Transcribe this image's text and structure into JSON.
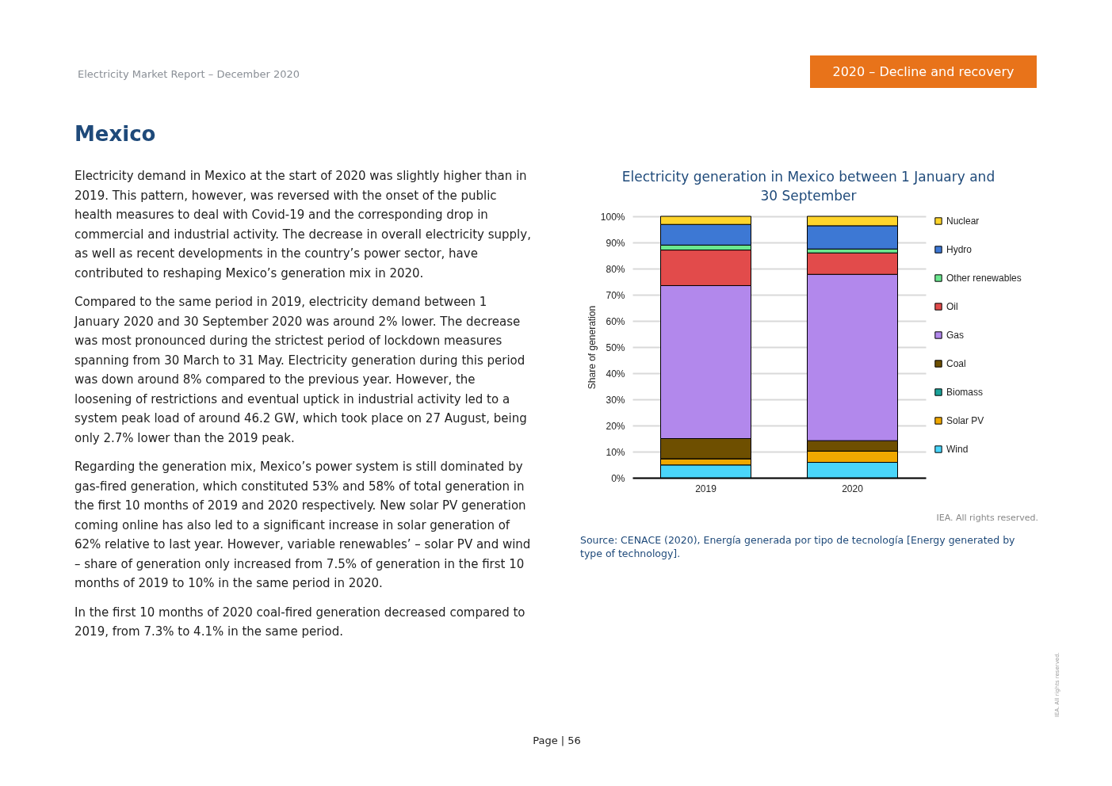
{
  "chart_data": {
    "type": "bar",
    "title": "Electricity generation in Mexico between 1 January and 30 September",
    "ylabel": "Share of generation",
    "categories": [
      "2019",
      "2020"
    ],
    "stacked": true,
    "ylim": [
      0,
      100
    ],
    "yticks": [
      {
        "value": 0,
        "label": "0%"
      },
      {
        "value": 10,
        "label": "10%"
      },
      {
        "value": 20,
        "label": "20%"
      },
      {
        "value": 30,
        "label": "30%"
      },
      {
        "value": 40,
        "label": "40%"
      },
      {
        "value": 50,
        "label": "50%"
      },
      {
        "value": 60,
        "label": "60%"
      },
      {
        "value": 70,
        "label": "70%"
      },
      {
        "value": 80,
        "label": "80%"
      },
      {
        "value": 90,
        "label": "90%"
      },
      {
        "value": 100,
        "label": "100%"
      }
    ],
    "grid": "y",
    "legend": "right",
    "series": [
      {
        "name": "Wind",
        "color": "#4ad5fa",
        "values": [
          4.9,
          5.9
        ]
      },
      {
        "name": "Solar PV",
        "color": "#f0a800",
        "values": [
          2.4,
          4.3
        ]
      },
      {
        "name": "Biomass",
        "color": "#1aa39a",
        "values": [
          0,
          0
        ]
      },
      {
        "name": "Coal",
        "color": "#6e4f00",
        "values": [
          7.7,
          4.0
        ]
      },
      {
        "name": "Gas",
        "color": "#b288ec",
        "values": [
          58.5,
          63.6
        ]
      },
      {
        "name": "Oil",
        "color": "#e24b4b",
        "values": [
          13.6,
          8.2
        ]
      },
      {
        "name": "Other renewables",
        "color": "#6be88f",
        "values": [
          1.9,
          1.5
        ]
      },
      {
        "name": "Hydro",
        "color": "#3d78d4",
        "values": [
          7.9,
          8.9
        ]
      },
      {
        "name": "Nuclear",
        "color": "#ffd52b",
        "values": [
          3.1,
          3.6
        ]
      }
    ],
    "annotations": [
      "Electricity Market Report – December 2020",
      "2020 – Decline and recovery",
      "Mexico",
      "Electricity demand in Mexico at the start of 2020 was slightly higher than in 2019. This pattern, however, was reversed with the onset of the public health measures to deal with Covid-19 and the corresponding drop in commercial and industrial activity. The decrease in overall electricity supply, as well as recent developments in the country’s power sector, have contributed to reshaping Mexico’s generation mix in 2020.",
      "Compared to the same period in 2019, electricity demand between 1 January 2020 and 30 September 2020 was around 2% lower. The decrease was most pronounced during the strictest period of lockdown measures spanning from 30 March to 31 May. Electricity generation during this period was down around 8% compared to the previous year. However, the loosening of restrictions and eventual uptick in industrial activity led to a system peak load of around 46.2 GW, which took place on 27 August, being only 2.7% lower than the 2019 peak.",
      "Regarding the generation mix, Mexico’s power system is still dominated by gas-fired generation, which constituted 53% and 58% of total generation in the first 10 months of 2019 and 2020 respectively. New solar PV generation coming online has also led to a significant increase in solar generation of 62% relative to last year. However, variable renewables’ – solar PV and wind – share of generation only increased from 7.5% of generation in the first 10 months of 2019 to 10% in the same period in 2020.",
      "In the first 10 months of 2020 coal-fired generation decreased compared to 2019, from 7.3% to 4.1% in the same period.",
      "IEA. All rights reserved.",
      "Source: CENACE (2020), Energía generada por tipo de tecnología [Energy generated by type of technology].",
      "Page | 56",
      "IEA. All rights reserved."
    ]
  }
}
